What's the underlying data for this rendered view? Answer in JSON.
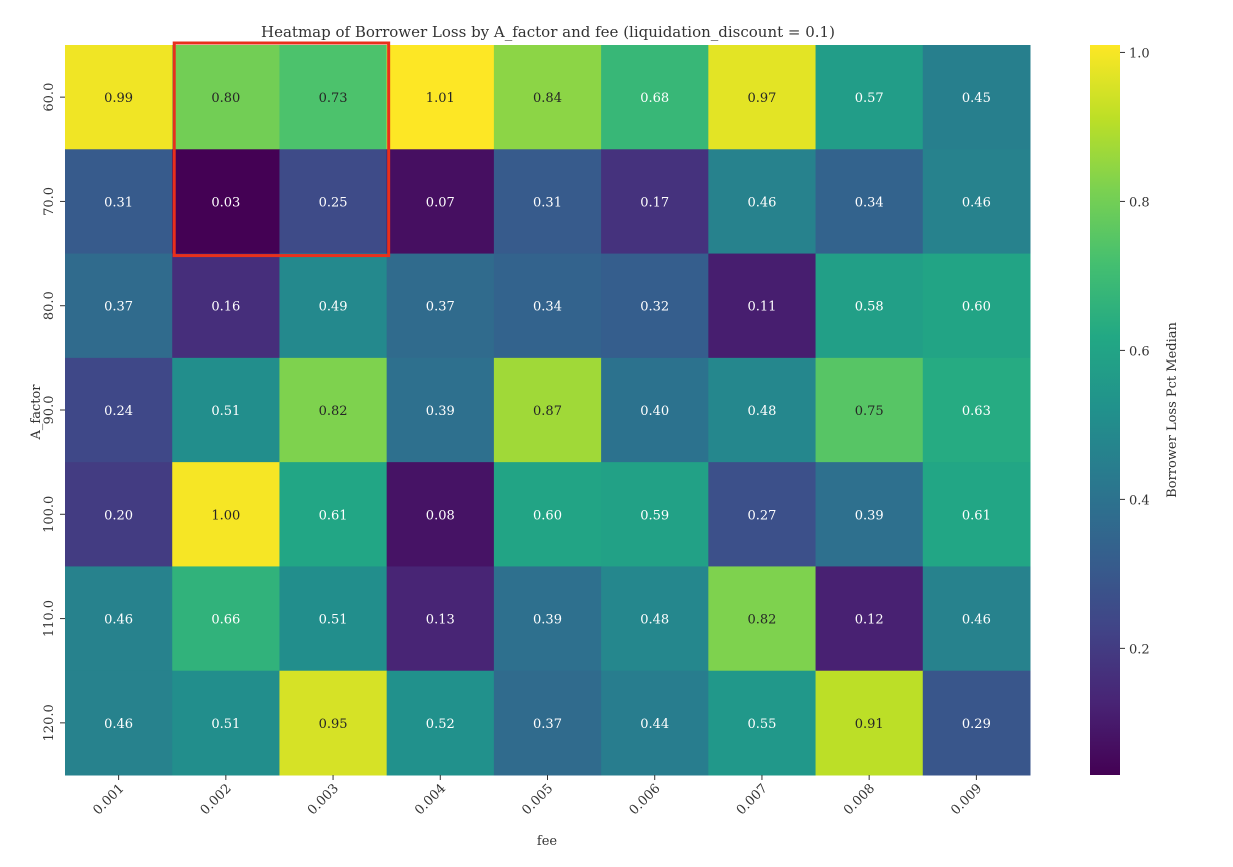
{
  "chart_data": {
    "type": "heatmap",
    "title": "Heatmap of Borrower Loss by A_factor and fee (liquidation_discount = 0.1)",
    "xlabel": "fee",
    "ylabel": "A_factor",
    "x": [
      "0.001",
      "0.002",
      "0.003",
      "0.004",
      "0.005",
      "0.006",
      "0.007",
      "0.008",
      "0.009"
    ],
    "y": [
      "60.0",
      "70.0",
      "80.0",
      "90.0",
      "100.0",
      "110.0",
      "120.0"
    ],
    "values": [
      [
        0.99,
        0.8,
        0.73,
        1.01,
        0.84,
        0.68,
        0.97,
        0.57,
        0.45
      ],
      [
        0.31,
        0.03,
        0.25,
        0.07,
        0.31,
        0.17,
        0.46,
        0.34,
        0.46
      ],
      [
        0.37,
        0.16,
        0.49,
        0.37,
        0.34,
        0.32,
        0.11,
        0.58,
        0.6
      ],
      [
        0.24,
        0.51,
        0.82,
        0.39,
        0.87,
        0.4,
        0.48,
        0.75,
        0.63
      ],
      [
        0.2,
        1.0,
        0.61,
        0.08,
        0.6,
        0.59,
        0.27,
        0.39,
        0.61
      ],
      [
        0.46,
        0.66,
        0.51,
        0.13,
        0.39,
        0.48,
        0.82,
        0.12,
        0.46
      ],
      [
        0.46,
        0.51,
        0.95,
        0.52,
        0.37,
        0.44,
        0.55,
        0.91,
        0.29
      ]
    ],
    "value_format": "0.00",
    "colormap": "viridis",
    "colorbar": {
      "label": "Borrower Loss Pct Median",
      "range": [
        0.03,
        1.01
      ],
      "ticks": [
        "0.2",
        "0.4",
        "0.6",
        "0.8",
        "1.0"
      ],
      "tick_values": [
        0.2,
        0.4,
        0.6,
        0.8,
        1.0
      ],
      "position": "right"
    },
    "highlight": {
      "description": "red rectangle annotation",
      "color": "#e8301c",
      "rows": [
        "60.0",
        "70.0"
      ],
      "cols": [
        "0.002",
        "0.003"
      ]
    }
  }
}
